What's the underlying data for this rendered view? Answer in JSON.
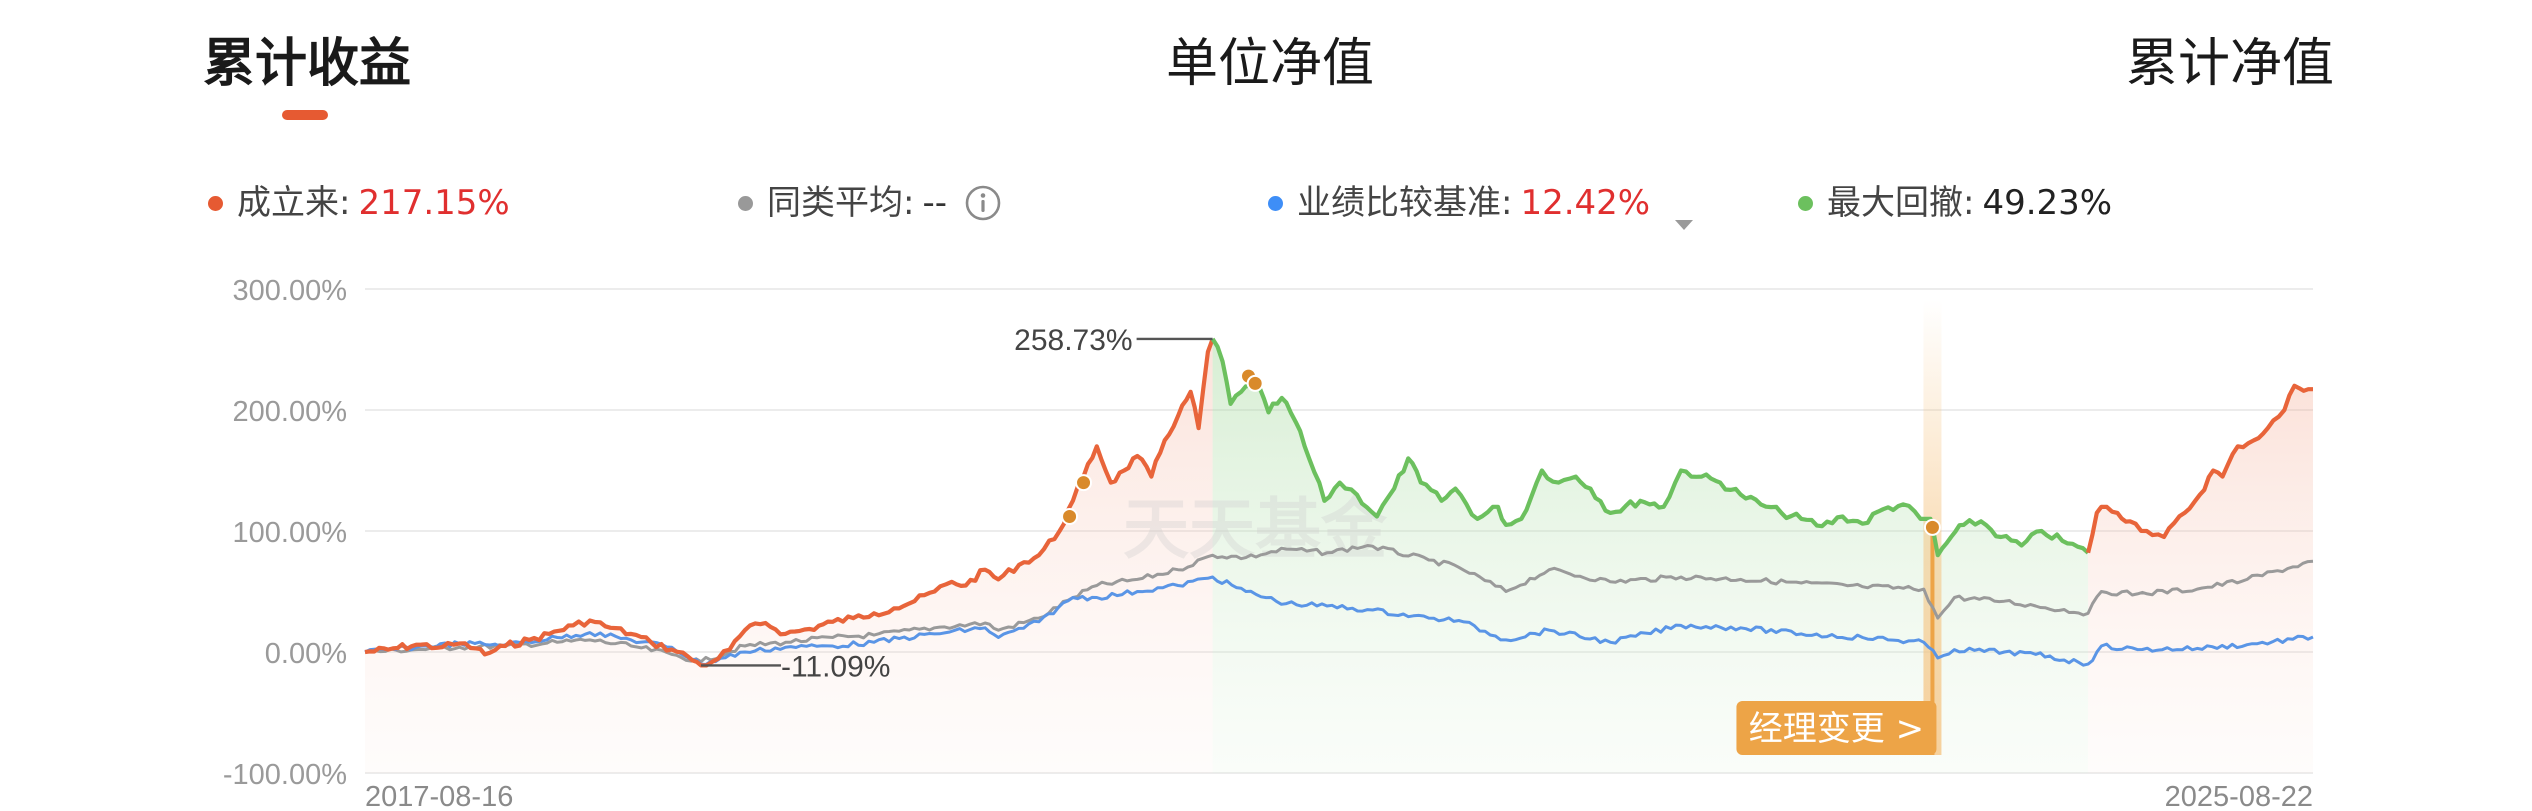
{
  "tabs": [
    {
      "label": "累计收益",
      "active": true
    },
    {
      "label": "单位净值",
      "active": false
    },
    {
      "label": "累计净值",
      "active": false
    }
  ],
  "legend": [
    {
      "label": "成立来",
      "value": "217.15%",
      "dot_color": "#e65a32",
      "value_color": "#e02f2f"
    },
    {
      "label": "同类平均",
      "value": "--",
      "dot_color": "#999999",
      "value_color": "#333333",
      "icon": "info-icon"
    },
    {
      "label": "业绩比较基准",
      "value": "12.42%",
      "dot_color": "#3e8ef7",
      "value_color": "#e02f2f",
      "icon": "dropdown-triangle-icon"
    },
    {
      "label": "最大回撤",
      "value": "49.23%",
      "dot_color": "#6cc05e",
      "value_color": "#222222"
    }
  ],
  "colors": {
    "accent": "#e65a32",
    "fund": "#e8643a",
    "peer": "#9a9a9a",
    "benchmark": "#5a95e6",
    "drawdown": "#6cc05e",
    "marker": "#d98a2b",
    "manager_change": "#eda447"
  },
  "chart_data": {
    "type": "line",
    "y_ticks": [
      "300.00%",
      "200.00%",
      "100.00%",
      "0.00%",
      "-100.00%"
    ],
    "ylim": [
      -100,
      300
    ],
    "x_start_label": "2017-08-16",
    "x_end_label": "2025-08-22",
    "watermark": "天天基金",
    "annotations": {
      "max_label": "258.73%",
      "min_label": "-11.09%",
      "manager_change": "经理变更 >"
    },
    "drawdown_range": {
      "from_date": "2021-02-10",
      "to_date": "2024-09-18"
    },
    "series": [
      {
        "name": "成立来",
        "points": [
          [
            "2017-08-16",
            0
          ],
          [
            "2017-09-20",
            2
          ],
          [
            "2017-11-01",
            6
          ],
          [
            "2017-12-10",
            4
          ],
          [
            "2018-01-05",
            7
          ],
          [
            "2018-01-30",
            3
          ],
          [
            "2018-02-12",
            -2
          ],
          [
            "2018-03-15",
            5
          ],
          [
            "2018-04-20",
            10
          ],
          [
            "2018-05-20",
            15
          ],
          [
            "2018-06-25",
            22
          ],
          [
            "2018-07-20",
            26
          ],
          [
            "2018-08-20",
            20
          ],
          [
            "2018-09-20",
            15
          ],
          [
            "2018-10-20",
            8
          ],
          [
            "2018-11-20",
            2
          ],
          [
            "2018-12-15",
            -4
          ],
          [
            "2019-01-03",
            -11.09
          ],
          [
            "2019-01-20",
            -8
          ],
          [
            "2019-02-15",
            2
          ],
          [
            "2019-03-10",
            18
          ],
          [
            "2019-04-10",
            24
          ],
          [
            "2019-05-10",
            15
          ],
          [
            "2019-06-15",
            19
          ],
          [
            "2019-07-20",
            25
          ],
          [
            "2019-08-20",
            28
          ],
          [
            "2019-09-20",
            32
          ],
          [
            "2019-10-20",
            36
          ],
          [
            "2019-11-20",
            42
          ],
          [
            "2019-12-20",
            50
          ],
          [
            "2020-01-15",
            58
          ],
          [
            "2020-02-05",
            55
          ],
          [
            "2020-03-05",
            68
          ],
          [
            "2020-03-25",
            60
          ],
          [
            "2020-04-25",
            72
          ],
          [
            "2020-05-25",
            80
          ],
          [
            "2020-06-25",
            100
          ],
          [
            "2020-07-15",
            125
          ],
          [
            "2020-07-31",
            145
          ],
          [
            "2020-08-20",
            170
          ],
          [
            "2020-09-10",
            140
          ],
          [
            "2020-09-30",
            150
          ],
          [
            "2020-10-20",
            162
          ],
          [
            "2020-11-10",
            145
          ],
          [
            "2020-11-30",
            175
          ],
          [
            "2020-12-20",
            195
          ],
          [
            "2021-01-08",
            215
          ],
          [
            "2021-01-20",
            185
          ],
          [
            "2021-02-03",
            248
          ],
          [
            "2021-02-10",
            258.73
          ]
        ]
      },
      {
        "name": "同类平均",
        "points": [
          [
            "2017-08-16",
            0
          ],
          [
            "2017-11-01",
            2
          ],
          [
            "2018-01-05",
            4
          ],
          [
            "2018-03-15",
            5
          ],
          [
            "2018-06-01",
            8
          ],
          [
            "2018-07-20",
            10
          ],
          [
            "2018-09-20",
            5
          ],
          [
            "2018-11-20",
            -2
          ],
          [
            "2019-01-03",
            -8
          ],
          [
            "2019-03-10",
            5
          ],
          [
            "2019-05-10",
            8
          ],
          [
            "2019-07-20",
            12
          ],
          [
            "2019-09-20",
            14
          ],
          [
            "2019-12-20",
            20
          ],
          [
            "2020-03-05",
            24
          ],
          [
            "2020-03-25",
            18
          ],
          [
            "2020-05-25",
            28
          ],
          [
            "2020-07-15",
            45
          ],
          [
            "2020-08-20",
            55
          ],
          [
            "2020-10-20",
            60
          ],
          [
            "2020-12-20",
            68
          ],
          [
            "2021-02-10",
            80
          ],
          [
            "2021-04-01",
            78
          ],
          [
            "2021-06-01",
            85
          ],
          [
            "2021-08-01",
            82
          ],
          [
            "2021-10-01",
            88
          ],
          [
            "2022-01-01",
            76
          ],
          [
            "2022-02-15",
            70
          ],
          [
            "2022-04-27",
            50
          ],
          [
            "2022-07-01",
            68
          ],
          [
            "2022-10-01",
            58
          ],
          [
            "2023-01-15",
            62
          ],
          [
            "2023-04-15",
            60
          ],
          [
            "2023-07-15",
            57
          ],
          [
            "2023-10-15",
            54
          ],
          [
            "2024-01-15",
            52
          ],
          [
            "2024-02-05",
            28
          ],
          [
            "2024-03-01",
            45
          ],
          [
            "2024-05-15",
            42
          ],
          [
            "2024-07-01",
            38
          ],
          [
            "2024-09-18",
            32
          ],
          [
            "2024-10-08",
            50
          ],
          [
            "2024-12-01",
            48
          ],
          [
            "2025-03-01",
            52
          ],
          [
            "2025-05-15",
            60
          ],
          [
            "2025-08-22",
            75
          ]
        ]
      },
      {
        "name": "业绩比较基准",
        "points": [
          [
            "2017-08-16",
            0
          ],
          [
            "2017-11-01",
            4
          ],
          [
            "2018-01-05",
            7
          ],
          [
            "2018-03-15",
            6
          ],
          [
            "2018-06-01",
            12
          ],
          [
            "2018-07-20",
            16
          ],
          [
            "2018-09-20",
            10
          ],
          [
            "2018-11-20",
            4
          ],
          [
            "2019-01-03",
            -10
          ],
          [
            "2019-03-10",
            0
          ],
          [
            "2019-05-10",
            4
          ],
          [
            "2019-07-20",
            5
          ],
          [
            "2019-09-20",
            8
          ],
          [
            "2019-12-20",
            15
          ],
          [
            "2020-03-05",
            20
          ],
          [
            "2020-03-25",
            12
          ],
          [
            "2020-05-25",
            25
          ],
          [
            "2020-07-15",
            45
          ],
          [
            "2020-08-20",
            45
          ],
          [
            "2020-10-20",
            50
          ],
          [
            "2020-12-20",
            55
          ],
          [
            "2021-02-10",
            62
          ],
          [
            "2021-04-01",
            50
          ],
          [
            "2021-06-01",
            40
          ],
          [
            "2021-08-01",
            38
          ],
          [
            "2021-10-01",
            35
          ],
          [
            "2022-01-01",
            28
          ],
          [
            "2022-02-15",
            26
          ],
          [
            "2022-04-27",
            10
          ],
          [
            "2022-07-01",
            18
          ],
          [
            "2022-10-01",
            8
          ],
          [
            "2023-01-15",
            22
          ],
          [
            "2023-04-15",
            20
          ],
          [
            "2023-07-15",
            15
          ],
          [
            "2023-10-15",
            12
          ],
          [
            "2024-01-15",
            8
          ],
          [
            "2024-02-05",
            -5
          ],
          [
            "2024-03-01",
            2
          ],
          [
            "2024-05-15",
            0
          ],
          [
            "2024-07-01",
            -2
          ],
          [
            "2024-09-18",
            -10
          ],
          [
            "2024-10-08",
            5
          ],
          [
            "2024-12-01",
            2
          ],
          [
            "2025-03-01",
            3
          ],
          [
            "2025-05-15",
            6
          ],
          [
            "2025-08-22",
            12.42
          ]
        ]
      },
      {
        "name": "最大回撤",
        "points": [
          [
            "2021-02-10",
            258.73
          ],
          [
            "2021-02-25",
            240
          ],
          [
            "2021-03-09",
            205
          ],
          [
            "2021-03-25",
            215
          ],
          [
            "2021-04-15",
            225
          ],
          [
            "2021-05-05",
            198
          ],
          [
            "2021-05-25",
            210
          ],
          [
            "2021-06-15",
            190
          ],
          [
            "2021-07-05",
            160
          ],
          [
            "2021-07-28",
            125
          ],
          [
            "2021-08-20",
            140
          ],
          [
            "2021-09-15",
            130
          ],
          [
            "2021-10-15",
            112
          ],
          [
            "2021-11-10",
            135
          ],
          [
            "2021-12-01",
            160
          ],
          [
            "2021-12-20",
            140
          ],
          [
            "2022-01-20",
            125
          ],
          [
            "2022-02-10",
            135
          ],
          [
            "2022-03-15",
            110
          ],
          [
            "2022-04-15",
            120
          ],
          [
            "2022-04-27",
            105
          ],
          [
            "2022-05-20",
            110
          ],
          [
            "2022-06-20",
            150
          ],
          [
            "2022-07-15",
            140
          ],
          [
            "2022-08-10",
            145
          ],
          [
            "2022-09-01",
            135
          ],
          [
            "2022-10-01",
            115
          ],
          [
            "2022-11-15",
            125
          ],
          [
            "2022-12-20",
            120
          ],
          [
            "2023-01-15",
            150
          ],
          [
            "2023-02-15",
            145
          ],
          [
            "2023-03-15",
            140
          ],
          [
            "2023-04-15",
            130
          ],
          [
            "2023-05-15",
            122
          ],
          [
            "2023-06-15",
            115
          ],
          [
            "2023-07-15",
            110
          ],
          [
            "2023-08-15",
            104
          ],
          [
            "2023-09-15",
            112
          ],
          [
            "2023-10-15",
            106
          ],
          [
            "2023-11-15",
            118
          ],
          [
            "2023-12-15",
            122
          ],
          [
            "2024-01-10",
            110
          ],
          [
            "2024-01-25",
            110
          ],
          [
            "2024-02-05",
            80
          ],
          [
            "2024-02-25",
            95
          ],
          [
            "2024-03-15",
            105
          ],
          [
            "2024-04-10",
            108
          ],
          [
            "2024-05-10",
            95
          ],
          [
            "2024-06-10",
            88
          ],
          [
            "2024-07-10",
            100
          ],
          [
            "2024-08-10",
            92
          ],
          [
            "2024-09-18",
            82
          ]
        ]
      },
      {
        "name": "成立来-后段",
        "points": [
          [
            "2024-09-18",
            82
          ],
          [
            "2024-10-01",
            115
          ],
          [
            "2024-10-08",
            120
          ],
          [
            "2024-11-01",
            115
          ],
          [
            "2024-11-20",
            108
          ],
          [
            "2024-12-15",
            100
          ],
          [
            "2025-01-10",
            95
          ],
          [
            "2025-02-10",
            115
          ],
          [
            "2025-03-05",
            130
          ],
          [
            "2025-03-25",
            150
          ],
          [
            "2025-04-08",
            145
          ],
          [
            "2025-05-01",
            170
          ],
          [
            "2025-05-25",
            175
          ],
          [
            "2025-06-15",
            185
          ],
          [
            "2025-07-10",
            200
          ],
          [
            "2025-07-25",
            220
          ],
          [
            "2025-08-22",
            217.15
          ]
        ]
      }
    ],
    "markers": [
      {
        "date": "2020-07-10",
        "value": 112
      },
      {
        "date": "2020-07-31",
        "value": 140
      },
      {
        "date": "2021-04-05",
        "value": 228
      },
      {
        "date": "2021-04-15",
        "value": 222
      },
      {
        "date": "2024-01-28",
        "value": 103
      }
    ],
    "manager_change_date": "2024-01-28"
  }
}
